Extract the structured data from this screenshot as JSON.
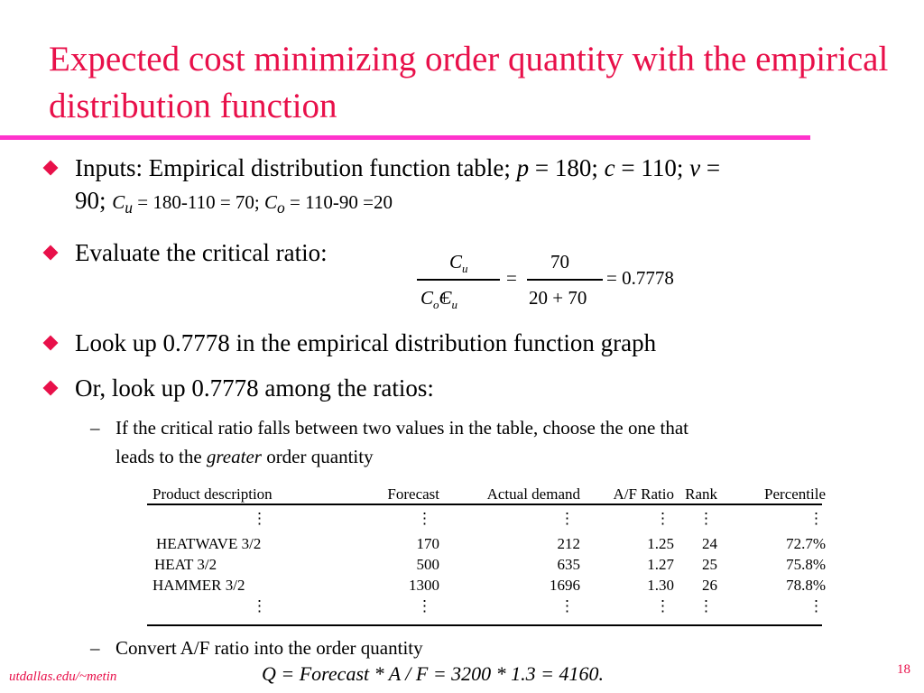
{
  "title": "Expected cost minimizing order quantity with the empirical distribution function",
  "bullets": {
    "b1_line1_a": "Inputs: Empirical distribution function table; ",
    "b1_p": "p",
    "b1_line1_b": " = 180; ",
    "b1_c": "c",
    "b1_line1_c": " = 110;  ",
    "b1_v": "v",
    "b1_line1_d": " =",
    "b1_line2_a": "90; ",
    "b1_cu": "C",
    "b1_cu_sub": "u",
    "b1_line2_b": " = 180-110 = 70;  ",
    "b1_co": "C",
    "b1_co_sub": "o",
    "b1_line2_c": " = 110-90 =20",
    "b2": "Evaluate the critical ratio:",
    "b3": "Look up 0.7778 in the empirical distribution function graph",
    "b4": "Or, look up 0.7778 among the ratios:"
  },
  "ratio": {
    "num1": "C",
    "num1_sub": "u",
    "den1": "C",
    "den1_sub_o": "o",
    "den1_plus": " + ",
    "den1b": "C",
    "den1_sub_u": "u",
    "eq1": "=",
    "num2": "70",
    "den2": "20 + 70",
    "eq2": "= 0.7778"
  },
  "sub1": {
    "line1": "If the critical ratio falls between two values in the table, choose the one that",
    "line2_a": "leads to the ",
    "line2_em": "greater",
    "line2_b": " order quantity"
  },
  "table": {
    "headers": [
      "Product description",
      "Forecast",
      "Actual demand",
      "A/F Ratio",
      "Rank",
      "Percentile"
    ],
    "rows": [
      [
        "HEATWAVE 3/2",
        "170",
        "212",
        "1.25",
        "24",
        "72.7%"
      ],
      [
        "HEAT 3/2",
        "500",
        "635",
        "1.27",
        "25",
        "75.8%"
      ],
      [
        "HAMMER 3/2",
        "1300",
        "1696",
        "1.30",
        "26",
        "78.8%"
      ]
    ],
    "ellipsis": "⋮"
  },
  "sub2": "Convert A/F ratio into the order quantity",
  "formula": "Q = Forecast * A / F = 3200 * 1.3 = 4160.",
  "footer": "utdallas.edu/~metin",
  "page_number": "18",
  "colors": {
    "title": "#e8104a",
    "rule": "#ff33cc",
    "bullet": "#e8104a"
  }
}
